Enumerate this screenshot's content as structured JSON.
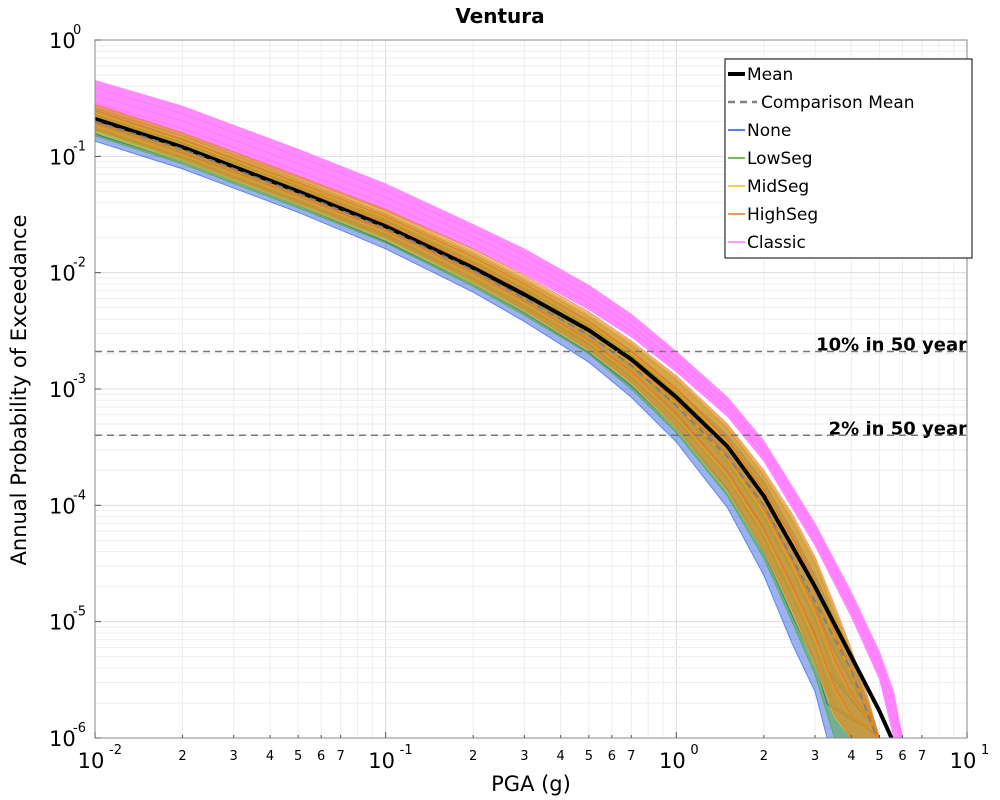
{
  "chart_data": {
    "type": "line",
    "title": "Ventura",
    "xlabel": "PGA (g)",
    "ylabel": "Annual Probability of Exceedance",
    "x_scale": "log",
    "y_scale": "log",
    "xlim": [
      0.01,
      10
    ],
    "ylim": [
      1e-06,
      1
    ],
    "grid": true,
    "legend_position": "top-right",
    "x_major_ticks": [
      {
        "value": 0.01,
        "base": "10",
        "exp": "-2"
      },
      {
        "value": 0.1,
        "base": "10",
        "exp": "-1"
      },
      {
        "value": 1,
        "base": "10",
        "exp": "0"
      },
      {
        "value": 10,
        "base": "10",
        "exp": "1"
      }
    ],
    "y_major_ticks": [
      {
        "value": 1,
        "base": "10",
        "exp": "0"
      },
      {
        "value": 0.1,
        "base": "10",
        "exp": "-1"
      },
      {
        "value": 0.01,
        "base": "10",
        "exp": "-2"
      },
      {
        "value": 0.001,
        "base": "10",
        "exp": "-3"
      },
      {
        "value": 0.0001,
        "base": "10",
        "exp": "-4"
      },
      {
        "value": 1e-05,
        "base": "10",
        "exp": "-5"
      },
      {
        "value": 1e-06,
        "base": "10",
        "exp": "-6"
      }
    ],
    "x_minor_tick_labels": [
      "2",
      "3",
      "4",
      "5",
      "6",
      "7"
    ],
    "series": [
      {
        "name": "Mean",
        "color": "#000000",
        "style": "solid-thick",
        "x": [
          0.01,
          0.02,
          0.05,
          0.1,
          0.2,
          0.3,
          0.5,
          0.7,
          1.0,
          1.5,
          2.0,
          3.0,
          4.0,
          5.0,
          5.5
        ],
        "y": [
          0.21,
          0.12,
          0.05,
          0.025,
          0.011,
          0.0065,
          0.0032,
          0.0018,
          0.00085,
          0.00032,
          0.00012,
          2e-05,
          5e-06,
          1.7e-06,
          1e-06
        ]
      },
      {
        "name": "Comparison Mean",
        "color": "#808080",
        "style": "dashed",
        "x": [
          0.01,
          0.02,
          0.05,
          0.1,
          0.2,
          0.3,
          0.5,
          0.7,
          1.0,
          1.5,
          2.0,
          3.0,
          4.0,
          4.9
        ],
        "y": [
          0.2,
          0.115,
          0.048,
          0.024,
          0.0105,
          0.006,
          0.0029,
          0.0016,
          0.00072,
          0.00026,
          0.0001,
          1.5e-05,
          3.8e-06,
          1e-06
        ]
      },
      {
        "name": "None",
        "color": "#2255dd",
        "style": "band",
        "x": [
          0.01,
          0.02,
          0.05,
          0.1,
          0.2,
          0.3,
          0.5,
          0.7,
          1.0,
          1.5,
          2.0,
          2.5,
          3.0,
          3.3,
          3.6,
          4.0,
          4.5,
          5.0
        ],
        "low": [
          0.135,
          0.078,
          0.033,
          0.016,
          0.0068,
          0.0038,
          0.0017,
          0.00085,
          0.00035,
          9.5e-05,
          2.5e-05,
          6.5e-06,
          2.5e-06,
          1e-06,
          1e-06,
          1e-06,
          1e-06,
          1e-06
        ],
        "high": [
          0.24,
          0.14,
          0.058,
          0.029,
          0.013,
          0.0077,
          0.0037,
          0.0021,
          0.001,
          0.0004,
          0.00016,
          6e-05,
          2.5e-05,
          1.5e-05,
          8.5e-06,
          4.5e-06,
          2.2e-06,
          1e-06
        ]
      },
      {
        "name": "LowSeg",
        "color": "#44aa22",
        "style": "band",
        "x": [
          0.01,
          0.02,
          0.05,
          0.1,
          0.2,
          0.3,
          0.5,
          0.7,
          1.0,
          1.5,
          2.0,
          2.5,
          3.0,
          3.5,
          4.0,
          4.5,
          5.0
        ],
        "low": [
          0.15,
          0.086,
          0.036,
          0.018,
          0.0076,
          0.0043,
          0.002,
          0.001,
          0.00042,
          0.00012,
          3.5e-05,
          1e-05,
          3.5e-06,
          1e-06,
          1e-06,
          1e-06,
          1e-06
        ],
        "high": [
          0.26,
          0.15,
          0.063,
          0.032,
          0.0145,
          0.0086,
          0.0042,
          0.0024,
          0.0012,
          0.00046,
          0.00018,
          7.5e-05,
          3.2e-05,
          1.2e-05,
          5.2e-06,
          2.2e-06,
          1e-06
        ]
      },
      {
        "name": "MidSeg",
        "color": "#e6c21a",
        "style": "band",
        "x": [
          0.01,
          0.02,
          0.05,
          0.1,
          0.2,
          0.3,
          0.5,
          0.7,
          1.0,
          1.5,
          2.0,
          2.5,
          3.0,
          3.5,
          4.0,
          4.5,
          5.0
        ],
        "low": [
          0.16,
          0.09,
          0.038,
          0.019,
          0.008,
          0.0046,
          0.0021,
          0.0011,
          0.00045,
          0.00013,
          4e-05,
          1.2e-05,
          4.2e-06,
          1.5e-06,
          1e-06,
          1e-06,
          1e-06
        ],
        "high": [
          0.27,
          0.155,
          0.066,
          0.034,
          0.0152,
          0.009,
          0.0044,
          0.0025,
          0.00125,
          0.00048,
          0.00019,
          8e-05,
          3.4e-05,
          1.3e-05,
          5.5e-06,
          2.4e-06,
          1e-06
        ]
      },
      {
        "name": "HighSeg",
        "color": "#e8782a",
        "style": "band",
        "x": [
          0.01,
          0.02,
          0.05,
          0.1,
          0.2,
          0.3,
          0.5,
          0.7,
          1.0,
          1.5,
          2.0,
          2.5,
          3.0,
          3.5,
          4.0,
          4.5,
          5.0
        ],
        "low": [
          0.17,
          0.095,
          0.04,
          0.02,
          0.0085,
          0.0048,
          0.0022,
          0.00115,
          0.00048,
          0.00014,
          4.2e-05,
          1.3e-05,
          4.5e-06,
          1.6e-06,
          1e-06,
          1e-06,
          1e-06
        ],
        "high": [
          0.28,
          0.16,
          0.068,
          0.035,
          0.016,
          0.0095,
          0.0046,
          0.0026,
          0.0013,
          0.0005,
          0.0002,
          8.5e-05,
          3.6e-05,
          1.4e-05,
          5.8e-06,
          2.5e-06,
          1e-06
        ]
      },
      {
        "name": "Classic",
        "color": "#ff77ff",
        "style": "band",
        "x": [
          0.01,
          0.02,
          0.05,
          0.1,
          0.2,
          0.3,
          0.5,
          0.7,
          1.0,
          1.5,
          2.0,
          3.0,
          4.0,
          5.0,
          5.6,
          6.0
        ],
        "low": [
          0.25,
          0.15,
          0.065,
          0.034,
          0.016,
          0.0097,
          0.0048,
          0.0028,
          0.0014,
          0.00058,
          0.00024,
          4.5e-05,
          1.1e-05,
          3.2e-06,
          1e-06,
          1e-06
        ],
        "high": [
          0.45,
          0.27,
          0.115,
          0.058,
          0.026,
          0.016,
          0.0078,
          0.0044,
          0.0021,
          0.00085,
          0.00036,
          7e-05,
          1.8e-05,
          5.5e-06,
          2.5e-06,
          1e-06
        ]
      }
    ],
    "reference_lines": [
      {
        "label": "10% in 50 year",
        "y": 0.0021
      },
      {
        "label": "2% in 50 year",
        "y": 0.0004
      }
    ]
  }
}
